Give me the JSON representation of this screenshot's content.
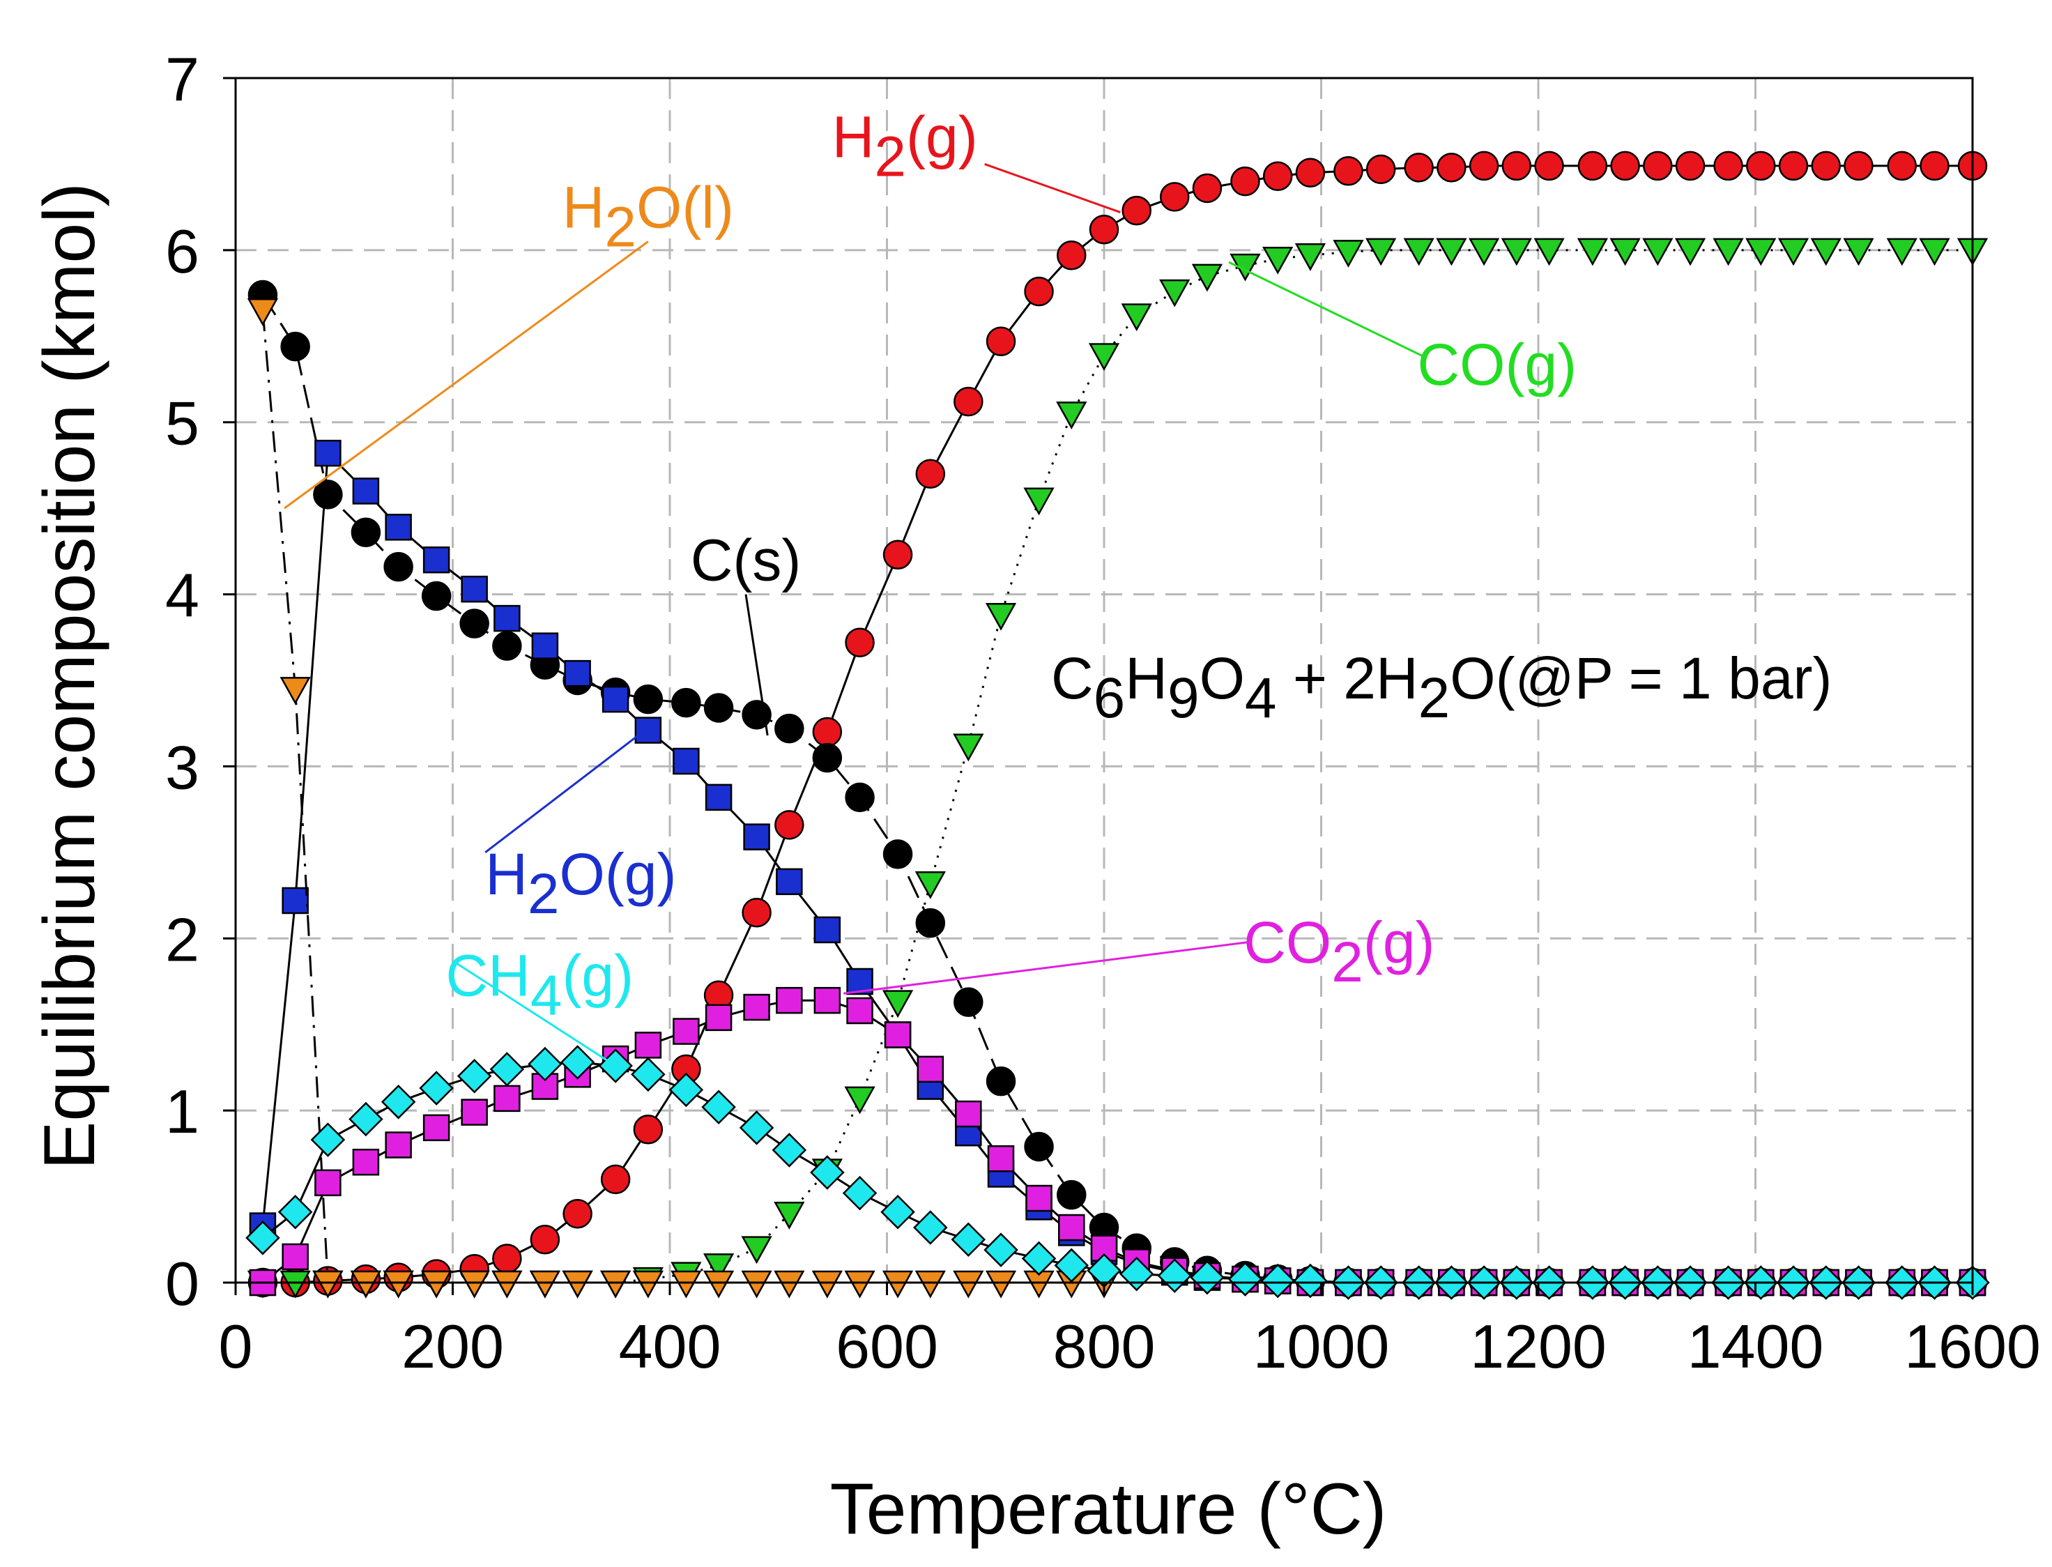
{
  "chart_data": {
    "type": "scatter",
    "xlabel": "Temperature (°C)",
    "ylabel": "Equilibrium composition (kmol)",
    "xlim": [
      0,
      1600
    ],
    "ylim": [
      0,
      7
    ],
    "xticks": [
      "0",
      "200",
      "400",
      "600",
      "800",
      "1000",
      "1200",
      "1400",
      "1600"
    ],
    "yticks": [
      "0",
      "1",
      "2",
      "3",
      "4",
      "5",
      "6",
      "7"
    ],
    "grid": true,
    "equation": {
      "parts": [
        {
          "t": "C",
          "sub": false
        },
        {
          "t": "6",
          "sub": true
        },
        {
          "t": "H",
          "sub": false
        },
        {
          "t": "9",
          "sub": true
        },
        {
          "t": "O",
          "sub": false
        },
        {
          "t": "4",
          "sub": true
        },
        {
          "t": " + 2H",
          "sub": false
        },
        {
          "t": "2",
          "sub": true
        },
        {
          "t": "O(@P = 1 bar)",
          "sub": false
        }
      ]
    },
    "series": [
      {
        "name": "H2(g)",
        "label_parts": [
          {
            "t": "H",
            "sub": false
          },
          {
            "t": "2",
            "sub": true
          },
          {
            "t": "(g)",
            "sub": false
          }
        ],
        "color": "#e8141c",
        "label_color": "#e8141c",
        "marker": "circle",
        "line": "solid",
        "x": [
          25,
          55,
          85,
          120,
          150,
          185,
          220,
          250,
          285,
          315,
          350,
          380,
          415,
          445,
          480,
          510,
          545,
          575,
          610,
          640,
          675,
          705,
          740,
          770,
          800,
          830,
          865,
          895,
          930,
          960,
          990,
          1025,
          1055,
          1090,
          1120,
          1150,
          1180,
          1210,
          1250,
          1280,
          1310,
          1340,
          1375,
          1405,
          1435,
          1465,
          1495,
          1535,
          1565,
          1600
        ],
        "y": [
          0.0,
          0.0,
          0.01,
          0.02,
          0.03,
          0.05,
          0.08,
          0.14,
          0.25,
          0.4,
          0.6,
          0.89,
          1.24,
          1.67,
          2.15,
          2.66,
          3.2,
          3.72,
          4.23,
          4.7,
          5.12,
          5.47,
          5.76,
          5.97,
          6.12,
          6.23,
          6.31,
          6.36,
          6.4,
          6.43,
          6.45,
          6.46,
          6.47,
          6.48,
          6.48,
          6.49,
          6.49,
          6.49,
          6.49,
          6.49,
          6.49,
          6.49,
          6.49,
          6.49,
          6.49,
          6.49,
          6.49,
          6.49,
          6.49,
          6.49
        ]
      },
      {
        "name": "CO(g)",
        "label_parts": [
          {
            "t": "CO(g)",
            "sub": false
          }
        ],
        "color": "#22cc22",
        "label_color": "#22dd22",
        "marker": "triangle-down",
        "line": "dotted",
        "x": [
          25,
          55,
          85,
          120,
          150,
          185,
          220,
          250,
          285,
          315,
          350,
          380,
          415,
          445,
          480,
          510,
          545,
          575,
          610,
          640,
          675,
          705,
          740,
          770,
          800,
          830,
          865,
          895,
          930,
          960,
          990,
          1025,
          1055,
          1090,
          1120,
          1150,
          1180,
          1210,
          1250,
          1280,
          1310,
          1340,
          1375,
          1405,
          1435,
          1465,
          1495,
          1535,
          1565,
          1600
        ],
        "y": [
          0.0,
          0.0,
          0.0,
          0.0,
          0.0,
          0.0,
          0.0,
          0.0,
          0.0,
          0.0,
          0.0,
          0.02,
          0.05,
          0.1,
          0.2,
          0.4,
          0.65,
          1.07,
          1.63,
          2.32,
          3.12,
          3.88,
          4.55,
          5.05,
          5.39,
          5.62,
          5.76,
          5.85,
          5.91,
          5.95,
          5.97,
          5.99,
          6.0,
          6.0,
          6.0,
          6.0,
          6.0,
          6.0,
          6.0,
          6.0,
          6.0,
          6.0,
          6.0,
          6.0,
          6.0,
          6.0,
          6.0,
          6.0,
          6.0,
          6.0
        ]
      },
      {
        "name": "C(s)",
        "label_parts": [
          {
            "t": "C(s)",
            "sub": false
          }
        ],
        "color": "#000000",
        "label_color": "#000000",
        "marker": "circle",
        "line": "dashed",
        "x": [
          25,
          55,
          85,
          120,
          150,
          185,
          220,
          250,
          285,
          315,
          350,
          380,
          415,
          445,
          480,
          510,
          545,
          575,
          610,
          640,
          675,
          705,
          740,
          770,
          800,
          830,
          865,
          895,
          930,
          960,
          990,
          1025,
          1055,
          1090,
          1120,
          1150,
          1180,
          1210,
          1250,
          1280,
          1310,
          1340,
          1375,
          1405,
          1435,
          1465,
          1495,
          1535,
          1565,
          1600
        ],
        "y": [
          5.74,
          5.44,
          4.58,
          4.36,
          4.16,
          3.99,
          3.83,
          3.7,
          3.59,
          3.5,
          3.43,
          3.39,
          3.37,
          3.34,
          3.3,
          3.22,
          3.05,
          2.82,
          2.49,
          2.09,
          1.63,
          1.17,
          0.79,
          0.51,
          0.32,
          0.2,
          0.12,
          0.07,
          0.04,
          0.02,
          0.01,
          0.0,
          0.0,
          0.0,
          0.0,
          0.0,
          0.0,
          0.0,
          0.0,
          0.0,
          0.0,
          0.0,
          0.0,
          0.0,
          0.0,
          0.0,
          0.0,
          0.0,
          0.0,
          0.0
        ]
      },
      {
        "name": "H2O(g)",
        "label_parts": [
          {
            "t": "H",
            "sub": false
          },
          {
            "t": "2",
            "sub": true
          },
          {
            "t": "O(g)",
            "sub": false
          }
        ],
        "color": "#1a2fd0",
        "label_color": "#1a2fd0",
        "marker": "square",
        "line": "solid",
        "x": [
          25,
          55,
          85,
          120,
          150,
          185,
          220,
          250,
          285,
          315,
          350,
          380,
          415,
          445,
          480,
          510,
          545,
          575,
          610,
          640,
          675,
          705,
          740,
          770,
          800,
          830,
          865,
          895,
          930,
          960,
          990,
          1025,
          1055,
          1090,
          1120,
          1150,
          1180,
          1210,
          1250,
          1280,
          1310,
          1340,
          1375,
          1405,
          1435,
          1465,
          1495,
          1535,
          1565,
          1600
        ],
        "y": [
          0.33,
          2.22,
          4.82,
          4.6,
          4.39,
          4.2,
          4.03,
          3.86,
          3.7,
          3.54,
          3.39,
          3.21,
          3.03,
          2.82,
          2.59,
          2.33,
          2.05,
          1.75,
          1.44,
          1.14,
          0.87,
          0.63,
          0.44,
          0.29,
          0.18,
          0.11,
          0.06,
          0.03,
          0.02,
          0.01,
          0.0,
          0.0,
          0.0,
          0.0,
          0.0,
          0.0,
          0.0,
          0.0,
          0.0,
          0.0,
          0.0,
          0.0,
          0.0,
          0.0,
          0.0,
          0.0,
          0.0,
          0.0,
          0.0,
          0.0
        ]
      },
      {
        "name": "H2O(l)",
        "label_parts": [
          {
            "t": "H",
            "sub": false
          },
          {
            "t": "2",
            "sub": true
          },
          {
            "t": "O(l)",
            "sub": false
          }
        ],
        "color": "#ee8a1a",
        "label_color": "#ee8a1a",
        "marker": "triangle-down",
        "line": "dashdot",
        "x": [
          25,
          55,
          85,
          120,
          150,
          185,
          220,
          250,
          285,
          315,
          350,
          380,
          415,
          445,
          480,
          510,
          545,
          575,
          610,
          640,
          675,
          705,
          740,
          770,
          800
        ],
        "y": [
          5.65,
          3.45,
          0.0,
          0.0,
          0.0,
          0.0,
          0.0,
          0.0,
          0.0,
          0.0,
          0.0,
          0.0,
          0.0,
          0.0,
          0.0,
          0.0,
          0.0,
          0.0,
          0.0,
          0.0,
          0.0,
          0.0,
          0.0,
          0.0,
          0.0
        ]
      },
      {
        "name": "CO2(g)",
        "label_parts": [
          {
            "t": "CO",
            "sub": false
          },
          {
            "t": "2",
            "sub": true
          },
          {
            "t": "(g)",
            "sub": false
          }
        ],
        "color": "#e020e0",
        "label_color": "#e020e0",
        "marker": "square",
        "line": "solid",
        "x": [
          25,
          55,
          85,
          120,
          150,
          185,
          220,
          250,
          285,
          315,
          350,
          380,
          415,
          445,
          480,
          510,
          545,
          575,
          610,
          640,
          675,
          705,
          740,
          770,
          800,
          830,
          865,
          895,
          930,
          960,
          990,
          1025,
          1055,
          1090,
          1120,
          1150,
          1180,
          1210,
          1250,
          1280,
          1310,
          1340,
          1375,
          1405,
          1435,
          1465,
          1495,
          1535,
          1565,
          1600
        ],
        "y": [
          0.0,
          0.15,
          0.58,
          0.7,
          0.8,
          0.9,
          0.99,
          1.07,
          1.14,
          1.21,
          1.3,
          1.38,
          1.46,
          1.54,
          1.6,
          1.64,
          1.64,
          1.58,
          1.44,
          1.24,
          0.98,
          0.72,
          0.49,
          0.32,
          0.2,
          0.12,
          0.07,
          0.04,
          0.02,
          0.01,
          0.0,
          0.0,
          0.0,
          0.0,
          0.0,
          0.0,
          0.0,
          0.0,
          0.0,
          0.0,
          0.0,
          0.0,
          0.0,
          0.0,
          0.0,
          0.0,
          0.0,
          0.0,
          0.0,
          0.0
        ]
      },
      {
        "name": "CH4(g)",
        "label_parts": [
          {
            "t": "CH",
            "sub": false
          },
          {
            "t": "4",
            "sub": true
          },
          {
            "t": "(g)",
            "sub": false
          }
        ],
        "color": "#1ee8ee",
        "label_color": "#1ee8ee",
        "marker": "diamond",
        "line": "solid",
        "x": [
          25,
          55,
          85,
          120,
          150,
          185,
          220,
          250,
          285,
          315,
          350,
          380,
          415,
          445,
          480,
          510,
          545,
          575,
          610,
          640,
          675,
          705,
          740,
          770,
          800,
          830,
          865,
          895,
          930,
          960,
          990,
          1025,
          1055,
          1090,
          1120,
          1150,
          1180,
          1210,
          1250,
          1280,
          1310,
          1340,
          1375,
          1405,
          1435,
          1465,
          1495,
          1535,
          1565,
          1600
        ],
        "y": [
          0.26,
          0.41,
          0.83,
          0.95,
          1.05,
          1.13,
          1.2,
          1.24,
          1.27,
          1.28,
          1.26,
          1.21,
          1.12,
          1.02,
          0.9,
          0.77,
          0.64,
          0.52,
          0.41,
          0.32,
          0.25,
          0.19,
          0.14,
          0.1,
          0.07,
          0.05,
          0.04,
          0.03,
          0.02,
          0.01,
          0.01,
          0.0,
          0.0,
          0.0,
          0.0,
          0.0,
          0.0,
          0.0,
          0.0,
          0.0,
          0.0,
          0.0,
          0.0,
          0.0,
          0.0,
          0.0,
          0.0,
          0.0,
          0.0,
          0.0
        ]
      }
    ],
    "annotations": [
      {
        "series": "H2(g)",
        "anchor": [
          815,
          6.22
        ],
        "text_at": [
          690,
          6.5
        ]
      },
      {
        "series": "H2O(l)",
        "anchor": [
          45,
          4.5
        ],
        "text_at": [
          380,
          6.05
        ]
      },
      {
        "series": "C(s)",
        "anchor": [
          490,
          3.18
        ],
        "text_at": [
          470,
          4.0
        ]
      },
      {
        "series": "H2O(g)",
        "anchor": [
          375,
          3.2
        ],
        "text_at": [
          230,
          2.5
        ]
      },
      {
        "series": "CO(g)",
        "anchor": [
          915,
          5.93
        ],
        "text_at": [
          1095,
          5.38
        ]
      },
      {
        "series": "CO2(g)",
        "anchor": [
          560,
          1.68
        ],
        "text_at": [
          935,
          1.98
        ]
      },
      {
        "series": "CH4(g)",
        "anchor": [
          345,
          1.28
        ],
        "text_at": [
          200,
          1.87
        ]
      }
    ]
  }
}
